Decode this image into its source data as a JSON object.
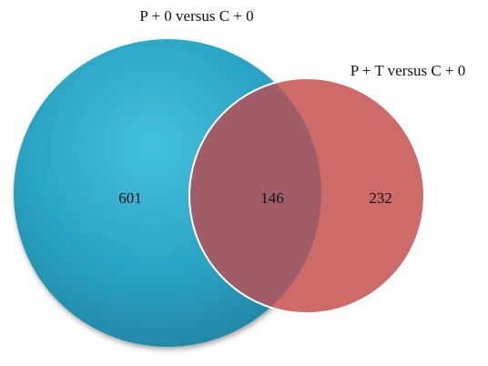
{
  "venn": {
    "sets": [
      {
        "label": "P + 0 versus C + 0",
        "color": "#2aa7c6",
        "count_only": "601"
      },
      {
        "label": "P + T versus C + 0",
        "color": "#cd6b69",
        "count_only": "232"
      }
    ],
    "intersection_count": "146",
    "intersection_color": "#a15d67"
  }
}
